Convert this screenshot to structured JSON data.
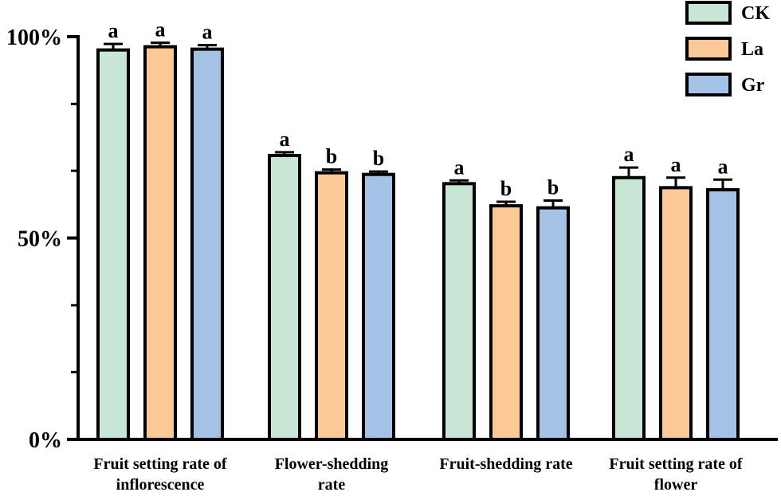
{
  "chart_data": {
    "type": "bar",
    "title": "",
    "xlabel": "",
    "ylabel": "",
    "ylim": [
      0,
      100
    ],
    "ytick_labels": [
      {
        "value": 0,
        "label": "0%"
      },
      {
        "value": 50,
        "label": "50%"
      },
      {
        "value": 100,
        "label": "100%"
      }
    ],
    "minor_ticks": [
      16.7,
      33.3,
      66.7,
      83.3
    ],
    "categories": [
      {
        "name": "Fruit setting rate of inflorescence",
        "lines": [
          "Fruit setting rate of",
          "inflorescence"
        ]
      },
      {
        "name": "Flower-shedding rate",
        "lines": [
          "Flower-shedding",
          "rate"
        ]
      },
      {
        "name": "Fruit-shedding rate",
        "lines": [
          "Fruit-shedding rate"
        ]
      },
      {
        "name": "Fruit setting rate of flower",
        "lines": [
          "Fruit setting rate of",
          "flower"
        ]
      }
    ],
    "series": [
      {
        "name": "CK",
        "color": "#c8e6d6",
        "values": [
          96.7,
          70.5,
          63.5,
          65.0
        ],
        "errors": [
          1.5,
          0.8,
          0.8,
          2.5
        ],
        "letters": [
          "a",
          "a",
          "a",
          "a"
        ]
      },
      {
        "name": "La",
        "color": "#fbc896",
        "values": [
          97.5,
          66.2,
          58.0,
          62.5
        ],
        "errors": [
          1.0,
          0.8,
          1.0,
          2.5
        ],
        "letters": [
          "a",
          "b",
          "b",
          "a"
        ]
      },
      {
        "name": "Gr",
        "color": "#a4c2e6",
        "values": [
          96.9,
          65.8,
          57.5,
          62.0
        ],
        "errors": [
          1.0,
          0.7,
          1.8,
          2.5
        ],
        "letters": [
          "a",
          "b",
          "b",
          "a"
        ]
      }
    ],
    "legend_position": "top-right",
    "grid": false
  }
}
